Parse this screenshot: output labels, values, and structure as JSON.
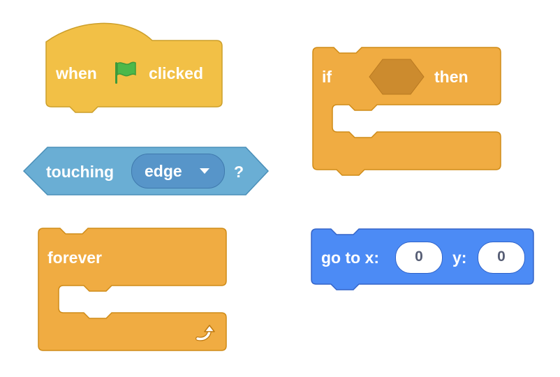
{
  "colors": {
    "events": "#f2c046",
    "events_border": "#cc9f2a",
    "control": "#f0ac42",
    "control_border": "#cf8b17",
    "sensing": "#6aaed4",
    "sensing_border": "#4a8fb8",
    "motion": "#4c8bf5",
    "motion_border": "#3464c8",
    "flag_green": "#4cb84a"
  },
  "when_flag_block": {
    "when_label": "when",
    "flag_icon": "green-flag-icon",
    "clicked_label": "clicked"
  },
  "if_block": {
    "if_label": "if",
    "then_label": "then"
  },
  "touching_block": {
    "label": "touching",
    "dropdown_value": "edge",
    "question_mark": "?"
  },
  "forever_block": {
    "label": "forever",
    "loop_icon": "loop-arrow-icon"
  },
  "goto_block": {
    "goto_label": "go to x:",
    "x_value": "0",
    "y_label": "y:",
    "y_value": "0"
  }
}
